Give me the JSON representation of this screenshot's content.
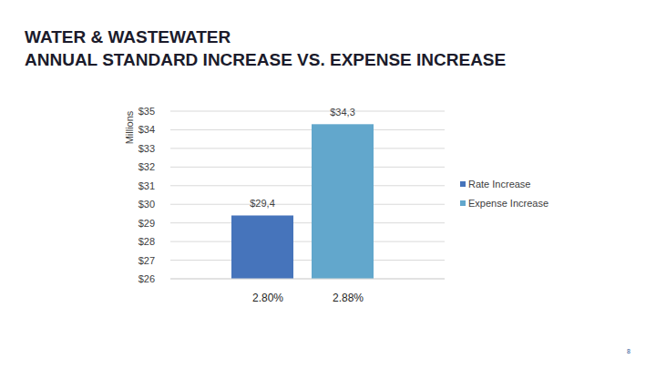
{
  "chart_data": {
    "type": "bar",
    "title": "WATER & WASTEWATER",
    "subtitle": "ANNUAL STANDARD INCREASE VS. EXPENSE INCREASE",
    "y_label": "Millions",
    "categories": [
      "2.80%",
      "2.88%"
    ],
    "series": [
      {
        "name": "Rate Increase",
        "color": "#4674bb",
        "values": [
          29.4,
          null
        ],
        "value_labels": [
          "$29,4",
          null
        ]
      },
      {
        "name": "Expense Increase",
        "color": "#62a7cc",
        "values": [
          null,
          34.3
        ],
        "value_labels": [
          null,
          "$34,3"
        ]
      }
    ],
    "ylim": [
      26,
      35
    ],
    "yticks": [
      {
        "value": 26,
        "label": "$26"
      },
      {
        "value": 27,
        "label": "$27"
      },
      {
        "value": 28,
        "label": "$28"
      },
      {
        "value": 29,
        "label": "$29"
      },
      {
        "value": 30,
        "label": "$30"
      },
      {
        "value": 31,
        "label": "$31"
      },
      {
        "value": 32,
        "label": "$32"
      },
      {
        "value": 33,
        "label": "$33"
      },
      {
        "value": 34,
        "label": "$34"
      },
      {
        "value": 35,
        "label": "$35"
      }
    ],
    "grid": true,
    "legend": "right",
    "data_labels": true,
    "annotations": [
      "8"
    ]
  }
}
